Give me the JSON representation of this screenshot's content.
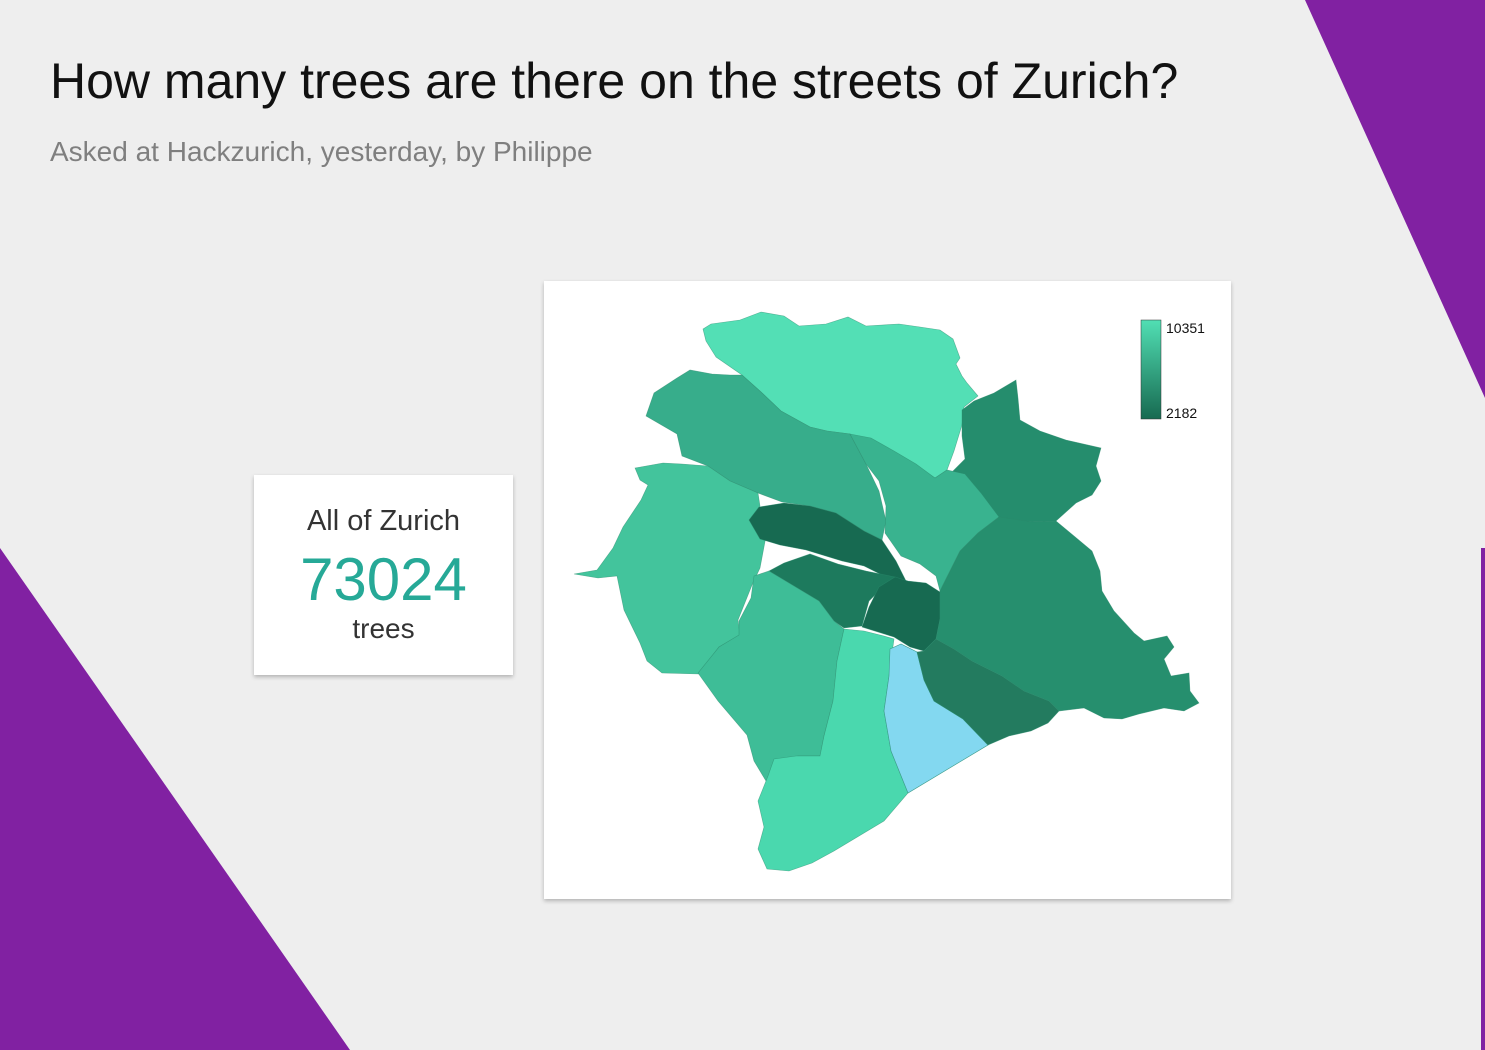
{
  "header": {
    "title": "How many trees are there on the streets of Zurich?",
    "subtitle": "Asked at Hackzurich, yesterday, by Philippe"
  },
  "summary": {
    "label": "All of Zurich",
    "value": "73024",
    "unit": "trees"
  },
  "map": {
    "legend": {
      "max": "10351",
      "min": "2182",
      "color_max": "#51dfb4",
      "color_min": "#176a51"
    },
    "no_data_color": "#83d8f0"
  },
  "colors": {
    "background": "#eeeeee",
    "accent": "#8121a2",
    "value": "#26a997"
  }
}
